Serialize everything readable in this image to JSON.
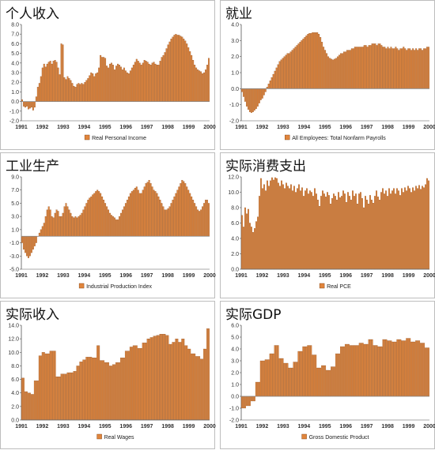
{
  "colors": {
    "bar": "#e0853c",
    "bar_edge": "#7a3a0c",
    "axis": "#555555",
    "zero": "#888888"
  },
  "chart_data": [
    {
      "type": "bar",
      "title": "个人收入",
      "legend": "Real Personal Income",
      "ylim": [
        -2.0,
        8.0
      ],
      "yticks": [
        "8.0",
        "7.0",
        "6.0",
        "5.0",
        "4.0",
        "3.0",
        "2.0",
        "1.0",
        "0.0",
        "-1.0",
        "-2.0"
      ],
      "ytick_values": [
        8,
        7,
        6,
        5,
        4,
        3,
        2,
        1,
        0,
        -1,
        -2
      ],
      "ytick_decimals": 1,
      "xlabels": [
        "1991",
        "1992",
        "1993",
        "1994",
        "1995",
        "1996",
        "1997",
        "1998",
        "1999",
        "2000"
      ],
      "values": [
        0.2,
        -0.5,
        -0.6,
        -0.5,
        -0.8,
        -0.7,
        -0.6,
        -0.9,
        -0.6,
        0.5,
        1.5,
        1.9,
        2.6,
        3.5,
        3.9,
        3.6,
        3.9,
        4.1,
        4.2,
        3.9,
        4.2,
        4.3,
        4.1,
        3.5,
        2.8,
        6.0,
        5.9,
        2.5,
        2.3,
        2.6,
        2.4,
        2.2,
        1.9,
        1.6,
        1.5,
        1.8,
        1.9,
        1.8,
        1.9,
        1.8,
        2.0,
        2.2,
        2.4,
        2.7,
        3.0,
        2.9,
        2.6,
        2.9,
        3.0,
        3.5,
        4.8,
        4.6,
        4.6,
        4.5,
        3.7,
        3.5,
        3.9,
        4.0,
        3.8,
        3.3,
        3.7,
        3.9,
        3.8,
        3.6,
        3.3,
        3.5,
        3.2,
        3.0,
        2.9,
        3.2,
        3.5,
        3.8,
        4.1,
        4.4,
        4.2,
        4.0,
        3.8,
        4.0,
        4.3,
        4.2,
        4.1,
        3.9,
        3.8,
        4.0,
        4.1,
        3.9,
        3.8,
        3.8,
        4.2,
        4.6,
        4.8,
        5.1,
        5.5,
        5.9,
        6.2,
        6.5,
        6.7,
        6.9,
        7.0,
        6.9,
        6.9,
        6.8,
        6.7,
        6.5,
        6.3,
        6.0,
        5.6,
        5.2,
        4.8,
        4.3,
        3.8,
        3.5,
        3.3,
        3.2,
        3.1,
        2.9,
        3.0,
        3.3,
        3.8,
        4.5
      ]
    },
    {
      "type": "bar",
      "title": "就业",
      "legend": "All Employees: Total Nonfarm Payrolls",
      "ylim": [
        -2.0,
        4.0
      ],
      "yticks": [
        "4.0",
        "3.0",
        "2.0",
        "1.0",
        "0.0",
        "-1.0",
        "-2.0"
      ],
      "ytick_values": [
        4,
        3,
        2,
        1,
        0,
        -1,
        -2
      ],
      "ytick_decimals": 1,
      "xlabels": [
        "1991",
        "1992",
        "1993",
        "1994",
        "1995",
        "1996",
        "1997",
        "1998",
        "1999",
        "2000"
      ],
      "values": [
        -0.2,
        -0.5,
        -0.8,
        -1.1,
        -1.3,
        -1.45,
        -1.5,
        -1.45,
        -1.35,
        -1.25,
        -1.1,
        -0.9,
        -0.7,
        -0.6,
        -0.4,
        -0.2,
        0.1,
        0.3,
        0.5,
        0.7,
        0.9,
        1.1,
        1.3,
        1.5,
        1.7,
        1.8,
        1.9,
        2.0,
        2.1,
        2.2,
        2.2,
        2.3,
        2.4,
        2.5,
        2.6,
        2.7,
        2.8,
        2.9,
        3.0,
        3.1,
        3.2,
        3.3,
        3.4,
        3.45,
        3.45,
        3.5,
        3.5,
        3.5,
        3.5,
        3.4,
        3.2,
        2.9,
        2.6,
        2.4,
        2.2,
        2.0,
        1.9,
        1.85,
        1.8,
        1.85,
        1.9,
        2.0,
        2.1,
        2.2,
        2.2,
        2.3,
        2.3,
        2.4,
        2.4,
        2.4,
        2.5,
        2.5,
        2.6,
        2.6,
        2.6,
        2.6,
        2.6,
        2.6,
        2.7,
        2.7,
        2.6,
        2.7,
        2.7,
        2.8,
        2.8,
        2.8,
        2.7,
        2.8,
        2.8,
        2.7,
        2.6,
        2.6,
        2.5,
        2.6,
        2.5,
        2.6,
        2.5,
        2.5,
        2.6,
        2.5,
        2.4,
        2.5,
        2.5,
        2.6,
        2.5,
        2.4,
        2.5,
        2.5,
        2.4,
        2.5,
        2.4,
        2.5,
        2.4,
        2.5,
        2.5,
        2.4,
        2.5,
        2.5,
        2.6,
        2.6
      ]
    },
    {
      "type": "bar",
      "title": "工业生产",
      "legend": "Industrial Production Index",
      "ylim": [
        -5.0,
        9.0
      ],
      "yticks": [
        "9.0",
        "7.0",
        "5.0",
        "3.0",
        "1.0",
        "-1.0",
        "-3.0",
        "-5.0"
      ],
      "ytick_values": [
        9,
        7,
        5,
        3,
        1,
        -1,
        -3,
        -5
      ],
      "ytick_decimals": 1,
      "xlabels": [
        "1991",
        "1992",
        "1993",
        "1994",
        "1995",
        "1996",
        "1997",
        "1998",
        "1999",
        "2000"
      ],
      "values": [
        -1.0,
        -2.0,
        -2.5,
        -3.0,
        -3.3,
        -3.0,
        -2.5,
        -2.0,
        -1.5,
        -1.0,
        0.0,
        0.5,
        1.0,
        1.5,
        2.0,
        3.0,
        4.0,
        4.5,
        4.0,
        3.0,
        2.8,
        3.5,
        4.0,
        3.8,
        3.0,
        3.0,
        3.5,
        4.5,
        5.0,
        4.5,
        4.0,
        3.5,
        3.0,
        2.8,
        3.0,
        2.8,
        3.0,
        3.2,
        3.5,
        4.0,
        4.5,
        5.0,
        5.5,
        5.8,
        6.0,
        6.3,
        6.5,
        6.8,
        7.0,
        6.8,
        6.5,
        6.0,
        5.5,
        5.0,
        4.5,
        4.0,
        3.5,
        3.2,
        3.0,
        2.8,
        2.5,
        2.5,
        3.0,
        3.5,
        4.0,
        4.5,
        5.0,
        5.5,
        6.0,
        6.5,
        6.8,
        7.0,
        7.3,
        7.5,
        7.0,
        6.5,
        6.5,
        7.0,
        7.5,
        8.0,
        8.2,
        8.5,
        8.0,
        7.5,
        7.0,
        6.8,
        6.5,
        6.0,
        5.5,
        5.0,
        4.5,
        4.0,
        4.0,
        4.2,
        4.5,
        5.0,
        5.5,
        6.0,
        6.5,
        7.0,
        7.5,
        8.0,
        8.5,
        8.3,
        8.0,
        7.5,
        7.0,
        6.5,
        6.0,
        5.5,
        5.0,
        4.5,
        4.0,
        3.8,
        4.0,
        4.5,
        5.0,
        5.5,
        5.5,
        5.0
      ]
    },
    {
      "type": "bar",
      "title": "实际消费支出",
      "legend": "Real PCE",
      "ylim": [
        0.0,
        12.0
      ],
      "yticks": [
        "12.0",
        "10.0",
        "8.0",
        "6.0",
        "4.0",
        "2.0",
        "0.0"
      ],
      "ytick_values": [
        12,
        10,
        8,
        6,
        4,
        2,
        0
      ],
      "ytick_decimals": 1,
      "xlabels": [
        "1991",
        "1992",
        "1993",
        "1994",
        "1995",
        "1996",
        "1997",
        "1998",
        "1999",
        "2000"
      ],
      "values": [
        7.0,
        5.5,
        8.0,
        7.2,
        7.8,
        6.0,
        5.5,
        4.8,
        5.3,
        6.2,
        6.8,
        9.5,
        11.8,
        10.5,
        11.0,
        10.2,
        11.5,
        10.8,
        11.5,
        11.9,
        11.6,
        11.9,
        11.8,
        11.2,
        10.8,
        11.5,
        11.0,
        10.5,
        11.2,
        10.8,
        10.5,
        11.0,
        10.2,
        10.8,
        10.0,
        10.5,
        11.0,
        10.2,
        10.6,
        9.5,
        10.2,
        10.5,
        9.8,
        10.2,
        10.0,
        9.5,
        10.5,
        9.8,
        9.0,
        8.2,
        9.5,
        10.2,
        9.8,
        9.4,
        10.0,
        9.6,
        8.5,
        9.2,
        9.8,
        9.5,
        9.0,
        10.0,
        9.3,
        9.5,
        10.2,
        9.8,
        8.7,
        10.0,
        9.5,
        9.0,
        10.2,
        9.5,
        9.8,
        8.5,
        9.8,
        10.0,
        9.2,
        8.0,
        9.5,
        9.0,
        8.5,
        9.6,
        9.0,
        8.6,
        9.5,
        10.2,
        9.4,
        9.0,
        10.0,
        10.5,
        9.8,
        10.2,
        9.5,
        10.5,
        9.8,
        10.2,
        10.5,
        9.8,
        10.5,
        10.2,
        9.6,
        10.5,
        10.0,
        10.6,
        10.2,
        10.8,
        10.5,
        10.0,
        10.6,
        10.2,
        10.8,
        10.5,
        10.9,
        10.4,
        10.8,
        10.6,
        11.0,
        11.8,
        11.5
      ]
    },
    {
      "type": "bar",
      "title": "实际收入",
      "legend": "Real Wages",
      "ylim": [
        0.0,
        14.0
      ],
      "yticks": [
        "14.0",
        "12.0",
        "10.0",
        "8.0",
        "6.0",
        "4.0",
        "2.0",
        "0.0"
      ],
      "ytick_values": [
        14,
        12,
        10,
        8,
        6,
        4,
        2,
        0
      ],
      "ytick_decimals": 1,
      "xlabels": [
        "1991",
        "1992",
        "1993",
        "1994",
        "1995",
        "1996",
        "1997",
        "1998",
        "1999",
        "2000"
      ],
      "values": [
        6.2,
        6.2,
        4.2,
        4.2,
        4.0,
        4.0,
        3.8,
        3.8,
        5.8,
        5.8,
        5.8,
        9.5,
        9.5,
        10.0,
        10.0,
        9.8,
        9.8,
        9.8,
        10.2,
        10.2,
        10.2,
        10.2,
        6.4,
        6.4,
        6.4,
        6.8,
        6.8,
        6.8,
        6.8,
        7.0,
        7.0,
        7.0,
        7.0,
        7.2,
        7.2,
        8.0,
        8.0,
        8.6,
        8.6,
        8.9,
        8.9,
        9.3,
        9.3,
        9.3,
        9.3,
        9.2,
        9.2,
        9.2,
        11.0,
        11.0,
        8.8,
        8.8,
        8.8,
        8.5,
        8.5,
        8.5,
        8.0,
        8.0,
        8.2,
        8.2,
        8.5,
        8.5,
        8.5,
        9.2,
        9.2,
        9.2,
        10.2,
        10.2,
        10.2,
        10.8,
        10.8,
        11.0,
        11.0,
        11.0,
        10.6,
        10.6,
        10.6,
        11.4,
        11.4,
        11.4,
        12.0,
        12.0,
        12.2,
        12.2,
        12.4,
        12.4,
        12.5,
        12.5,
        12.7,
        12.7,
        12.7,
        12.7,
        12.5,
        12.5,
        11.2,
        11.2,
        11.5,
        11.5,
        12.0,
        12.0,
        11.5,
        11.5,
        12.0,
        12.0,
        11.0,
        11.0,
        10.5,
        10.5,
        9.8,
        9.8,
        9.8,
        9.4,
        9.4,
        9.4,
        9.0,
        9.0,
        10.5,
        10.5,
        13.5,
        13.5
      ]
    },
    {
      "type": "bar",
      "title": "实际GDP",
      "legend": "Gross Domestic Product",
      "ylim": [
        -2.0,
        6.0
      ],
      "yticks": [
        "6.0",
        "5.0",
        "4.0",
        "3.0",
        "2.0",
        "1.0",
        "0.0",
        "-1.0",
        "-2.0"
      ],
      "ytick_values": [
        6,
        5,
        4,
        3,
        2,
        1,
        0,
        -1,
        -2
      ],
      "ytick_decimals": 1,
      "xlabels": [
        "1991",
        "1992",
        "1993",
        "1994",
        "1995",
        "1996",
        "1997",
        "1998",
        "1999",
        "2000"
      ],
      "values": [
        -1.0,
        -1.0,
        -1.0,
        -0.8,
        -0.8,
        -0.8,
        -0.4,
        -0.4,
        -0.4,
        1.2,
        1.2,
        1.2,
        3.0,
        3.0,
        3.0,
        3.1,
        3.1,
        3.1,
        3.6,
        3.6,
        3.6,
        4.3,
        4.3,
        4.3,
        3.2,
        3.2,
        3.2,
        2.8,
        2.8,
        2.8,
        2.4,
        2.4,
        2.4,
        2.9,
        2.9,
        2.9,
        3.8,
        3.8,
        3.8,
        4.2,
        4.2,
        4.2,
        4.3,
        4.3,
        4.3,
        3.5,
        3.5,
        3.5,
        2.4,
        2.4,
        2.4,
        2.6,
        2.6,
        2.6,
        2.2,
        2.2,
        2.2,
        2.5,
        2.5,
        2.5,
        3.6,
        3.6,
        3.6,
        4.2,
        4.2,
        4.2,
        4.4,
        4.4,
        4.4,
        4.3,
        4.3,
        4.3,
        4.3,
        4.3,
        4.3,
        4.5,
        4.5,
        4.5,
        4.4,
        4.4,
        4.4,
        4.8,
        4.8,
        4.8,
        4.3,
        4.3,
        4.3,
        4.2,
        4.2,
        4.2,
        4.8,
        4.8,
        4.8,
        4.7,
        4.7,
        4.7,
        4.6,
        4.6,
        4.6,
        4.8,
        4.8,
        4.8,
        4.7,
        4.7,
        4.7,
        4.9,
        4.9,
        4.9,
        4.6,
        4.6,
        4.6,
        4.7,
        4.7,
        4.7,
        4.5,
        4.5,
        4.5,
        4.1,
        4.1,
        4.1
      ]
    }
  ]
}
